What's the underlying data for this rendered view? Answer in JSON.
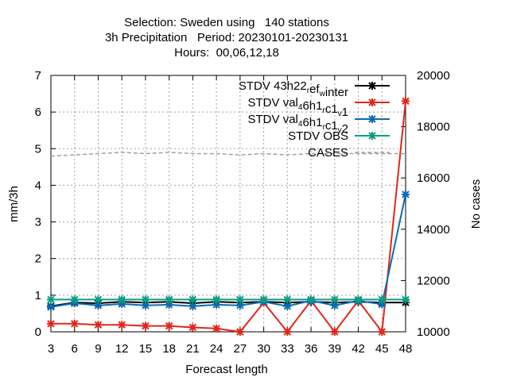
{
  "title_lines": [
    "Selection: Sweden using   140 stations",
    "3h Precipitation   Period: 20230101-20230131",
    "Hours:  00,06,12,18"
  ],
  "colors": {
    "ref": "#000000",
    "v1": "#e0271b",
    "v2": "#0a6bb4",
    "obs": "#0b9e82",
    "cases": "#a0a0a0"
  },
  "chart_data": {
    "type": "line",
    "title": "Selection: Sweden using   140 stations / 3h Precipitation   Period: 20230101-20230131 / Hours:  00,06,12,18",
    "xlabel": "Forecast length",
    "ylabel": "mm/3h",
    "y2label": "No cases",
    "x": [
      3,
      6,
      9,
      12,
      15,
      18,
      21,
      24,
      27,
      30,
      33,
      36,
      39,
      42,
      45,
      48
    ],
    "xlim": [
      3,
      48
    ],
    "ylim": [
      0,
      7
    ],
    "y2lim": [
      10000,
      20000
    ],
    "yticks": [
      0,
      1,
      2,
      3,
      4,
      5,
      6,
      7
    ],
    "y2ticks": [
      10000,
      12000,
      14000,
      16000,
      18000,
      20000
    ],
    "grid": true,
    "legend_position": "top-right",
    "series": [
      {
        "name": "STDV 43h22_ref_winter",
        "legend_parts": [
          [
            "STDV 43h22",
            "n"
          ],
          [
            "r",
            "sub"
          ],
          [
            "ef",
            "n"
          ],
          [
            "w",
            "sub"
          ],
          [
            "inter",
            "n"
          ]
        ],
        "color_key": "ref",
        "axis": "y",
        "values": [
          0.7,
          0.8,
          0.78,
          0.82,
          0.8,
          0.82,
          0.78,
          0.82,
          0.8,
          0.82,
          0.8,
          0.82,
          0.8,
          0.82,
          0.8,
          0.8
        ]
      },
      {
        "name": "STDV val_46h1_rc1_v1",
        "legend_parts": [
          [
            "STDV val",
            "n"
          ],
          [
            "4",
            "sub"
          ],
          [
            "6h1",
            "n"
          ],
          [
            "r",
            "sub"
          ],
          [
            "c1",
            "n"
          ],
          [
            "v",
            "sub"
          ],
          [
            "1",
            "n"
          ]
        ],
        "color_key": "v1",
        "axis": "y",
        "values": [
          0.22,
          0.22,
          0.19,
          0.19,
          0.16,
          0.16,
          0.12,
          0.09,
          0.0,
          0.8,
          0.0,
          0.85,
          0.0,
          0.85,
          0.0,
          6.3
        ]
      },
      {
        "name": "STDV val_46h1_rc1_v2",
        "legend_parts": [
          [
            "STDV val",
            "n"
          ],
          [
            "4",
            "sub"
          ],
          [
            "6h1",
            "n"
          ],
          [
            "r",
            "sub"
          ],
          [
            "c1",
            "n"
          ],
          [
            "v",
            "sub"
          ],
          [
            "2",
            "n"
          ]
        ],
        "color_key": "v2",
        "axis": "y",
        "values": [
          0.68,
          0.78,
          0.72,
          0.76,
          0.72,
          0.74,
          0.7,
          0.74,
          0.72,
          0.82,
          0.7,
          0.85,
          0.72,
          0.85,
          0.75,
          3.75
        ]
      },
      {
        "name": "STDV OBS",
        "legend_parts": [
          [
            "STDV OBS",
            "n"
          ]
        ],
        "color_key": "obs",
        "axis": "y",
        "values": [
          0.88,
          0.88,
          0.88,
          0.88,
          0.88,
          0.88,
          0.88,
          0.88,
          0.88,
          0.88,
          0.88,
          0.88,
          0.88,
          0.88,
          0.88,
          0.88
        ]
      },
      {
        "name": "CASES",
        "legend_parts": [
          [
            "CASES",
            "n"
          ]
        ],
        "color_key": "cases",
        "axis": "y2",
        "dashed": true,
        "values": [
          16850,
          16900,
          16950,
          17000,
          16950,
          17000,
          16950,
          16950,
          16900,
          16950,
          16900,
          16950,
          16950,
          16950,
          16950,
          16950
        ]
      }
    ]
  }
}
